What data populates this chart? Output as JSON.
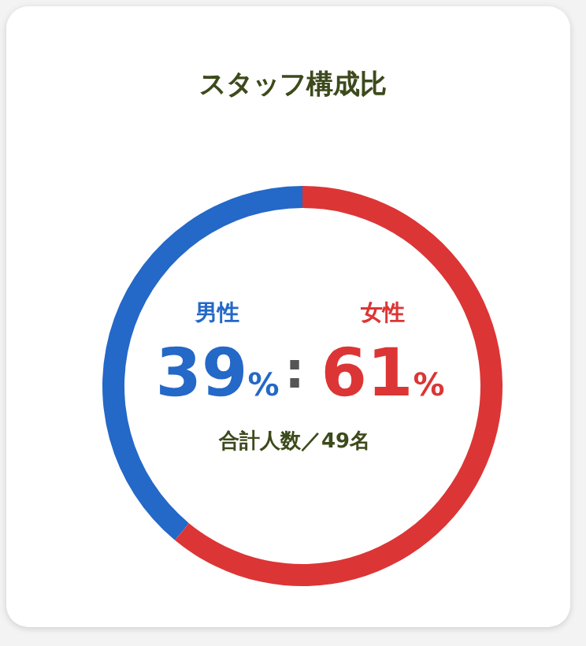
{
  "chart_data": {
    "type": "donut",
    "title": "スタッフ構成比",
    "categories": [
      "男性",
      "女性"
    ],
    "values": [
      39,
      61
    ],
    "colors": [
      "#2468c8",
      "#dc3535"
    ],
    "value_labels": [
      "39%",
      "61%"
    ],
    "annotations": [
      ":",
      "合計人数／49名"
    ]
  }
}
